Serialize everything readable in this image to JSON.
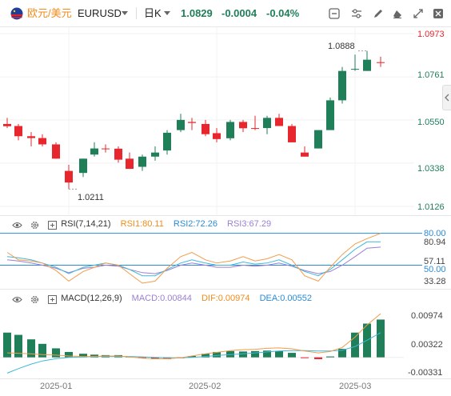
{
  "toolbar": {
    "pair_name": "欧元/美元",
    "symbol": "EURUSD",
    "timeframe": "日K",
    "price": "1.0829",
    "change": "-0.0004",
    "change_pct": "-0.04%"
  },
  "colors": {
    "up": "#1f7f59",
    "down": "#e8262d",
    "ma_orange": "#f39c4a",
    "ma_cyan": "#3fb8d8",
    "purple": "#9b7fd4",
    "text_orange": "#f08c1a",
    "text_blue": "#2a8bd8"
  },
  "chart_data": {
    "type": "candlestick",
    "y_ticks": [
      "1.0973",
      "1.0761",
      "1.0550",
      "1.0338",
      "1.0126"
    ],
    "x_ticks": [
      "2025-01",
      "2025-02",
      "2025-03"
    ],
    "high_annotation": "1.0888",
    "low_annotation": "1.0211",
    "candles": [
      {
        "o": 1.053,
        "h": 1.056,
        "l": 1.051,
        "c": 1.0519
      },
      {
        "o": 1.052,
        "h": 1.053,
        "l": 1.045,
        "c": 1.047
      },
      {
        "o": 1.047,
        "h": 1.049,
        "l": 1.042,
        "c": 1.0461
      },
      {
        "o": 1.0461,
        "h": 1.048,
        "l": 1.042,
        "c": 1.043
      },
      {
        "o": 1.043,
        "h": 1.044,
        "l": 1.036,
        "c": 1.036
      },
      {
        "o": 1.03,
        "h": 1.033,
        "l": 1.0211,
        "c": 1.0243
      },
      {
        "o": 1.029,
        "h": 1.036,
        "l": 1.027,
        "c": 1.036
      },
      {
        "o": 1.038,
        "h": 1.044,
        "l": 1.037,
        "c": 1.041
      },
      {
        "o": 1.041,
        "h": 1.043,
        "l": 1.039,
        "c": 1.0409
      },
      {
        "o": 1.0409,
        "h": 1.042,
        "l": 1.034,
        "c": 1.0355
      },
      {
        "o": 1.036,
        "h": 1.039,
        "l": 1.031,
        "c": 1.031
      },
      {
        "o": 1.032,
        "h": 1.038,
        "l": 1.03,
        "c": 1.037
      },
      {
        "o": 1.037,
        "h": 1.042,
        "l": 1.035,
        "c": 1.039
      },
      {
        "o": 1.04,
        "h": 1.05,
        "l": 1.038,
        "c": 1.0487
      },
      {
        "o": 1.05,
        "h": 1.058,
        "l": 1.049,
        "c": 1.055
      },
      {
        "o": 1.054,
        "h": 1.056,
        "l": 1.05,
        "c": 1.0535
      },
      {
        "o": 1.053,
        "h": 1.055,
        "l": 1.047,
        "c": 1.048
      },
      {
        "o": 1.0485,
        "h": 1.051,
        "l": 1.044,
        "c": 1.0456
      },
      {
        "o": 1.046,
        "h": 1.055,
        "l": 1.045,
        "c": 1.054
      },
      {
        "o": 1.054,
        "h": 1.055,
        "l": 1.049,
        "c": 1.0509
      },
      {
        "o": 1.051,
        "h": 1.057,
        "l": 1.05,
        "c": 1.0509
      },
      {
        "o": 1.051,
        "h": 1.057,
        "l": 1.048,
        "c": 1.056
      },
      {
        "o": 1.056,
        "h": 1.058,
        "l": 1.052,
        "c": 1.052
      },
      {
        "o": 1.052,
        "h": 1.053,
        "l": 1.044,
        "c": 1.044
      },
      {
        "o": 1.039,
        "h": 1.042,
        "l": 1.037,
        "c": 1.037
      },
      {
        "o": 1.041,
        "h": 1.05,
        "l": 1.041,
        "c": 1.05
      },
      {
        "o": 1.05,
        "h": 1.066,
        "l": 1.05,
        "c": 1.0646
      },
      {
        "o": 1.0646,
        "h": 1.081,
        "l": 1.063,
        "c": 1.079
      },
      {
        "o": 1.08,
        "h": 1.087,
        "l": 1.079,
        "c": 1.08
      },
      {
        "o": 1.079,
        "h": 1.0888,
        "l": 1.079,
        "c": 1.0845
      },
      {
        "o": 1.0833,
        "h": 1.086,
        "l": 1.081,
        "c": 1.0829
      }
    ],
    "candle_x": [
      9,
      23,
      39,
      53,
      70,
      86,
      104,
      118,
      132,
      148,
      162,
      178,
      194,
      209,
      226,
      240,
      257,
      271,
      288,
      304,
      319,
      334,
      349,
      365,
      381,
      398,
      413,
      428,
      444,
      459,
      476
    ],
    "price_range": [
      1.0126,
      1.0973
    ],
    "rsi": {
      "label": "RSI(7,14,21)",
      "rsi1": "RSI1:80.11",
      "rsi2": "RSI2:72.26",
      "rsi3": "RSI3:67.29",
      "ticks": [
        "80.00",
        "80.94",
        "57.11",
        "50.00",
        "33.28"
      ],
      "range": [
        30,
        82
      ],
      "rsi1_values": [
        62,
        55,
        54,
        52,
        45,
        35,
        44,
        48,
        52,
        50,
        42,
        33,
        35,
        47,
        58,
        62,
        55,
        52,
        54,
        58,
        54,
        56,
        60,
        55,
        40,
        35,
        48,
        60,
        70,
        75,
        80
      ],
      "rsi2_values": [
        58,
        57,
        55,
        52,
        48,
        42,
        48,
        50,
        52,
        50,
        46,
        40,
        40,
        46,
        52,
        55,
        52,
        50,
        50,
        53,
        51,
        52,
        55,
        50,
        44,
        40,
        46,
        55,
        65,
        72,
        72
      ],
      "rsi3_values": [
        55,
        54,
        52,
        50,
        47,
        43,
        47,
        48,
        50,
        49,
        46,
        43,
        42,
        45,
        50,
        52,
        50,
        48,
        48,
        50,
        49,
        50,
        52,
        49,
        45,
        42,
        44,
        50,
        58,
        66,
        67
      ]
    },
    "macd": {
      "label": "MACD(12,26,9)",
      "macd": "MACD:0.00844",
      "dif": "DIF:0.00974",
      "dea": "DEA:0.00552",
      "ticks": [
        "0.00974",
        "0.00322",
        "-0.00331"
      ],
      "range": [
        -0.0045,
        0.0115
      ],
      "hist": [
        0.0055,
        0.005,
        0.004,
        0.003,
        0.002,
        0.0012,
        0.0008,
        0.0006,
        0.0005,
        0.0005,
        0.0002,
        -0.0002,
        -0.0004,
        -0.0004,
        -0.0002,
        0.0003,
        0.0008,
        0.0012,
        0.0014,
        0.0013,
        0.0014,
        0.0015,
        0.0014,
        0.001,
        -0.0001,
        -0.0004,
        0.0002,
        0.0019,
        0.0055,
        0.0075,
        0.0084
      ],
      "dif_values": [
        0.001,
        0.0009,
        0.0008,
        0.0006,
        0.0005,
        0.0003,
        0.0002,
        0.0002,
        0.0003,
        0.0003,
        0.0001,
        -0.0002,
        -0.0003,
        -0.0003,
        -0.0001,
        0.0003,
        0.0008,
        0.0011,
        0.0015,
        0.0017,
        0.0018,
        0.002,
        0.0021,
        0.0019,
        0.0014,
        0.001,
        0.0013,
        0.0022,
        0.0045,
        0.0072,
        0.0097
      ],
      "dea_values": [
        -0.0035,
        -0.0025,
        -0.0015,
        -0.0008,
        -0.0003,
        0.0,
        0.0001,
        0.0002,
        0.0002,
        0.0002,
        0.0002,
        0.0001,
        0.0,
        -0.0001,
        -0.0001,
        0.0,
        0.0002,
        0.0004,
        0.0006,
        0.0008,
        0.001,
        0.0012,
        0.0014,
        0.0015,
        0.0015,
        0.0014,
        0.0014,
        0.0016,
        0.0024,
        0.0038,
        0.0055
      ]
    }
  }
}
